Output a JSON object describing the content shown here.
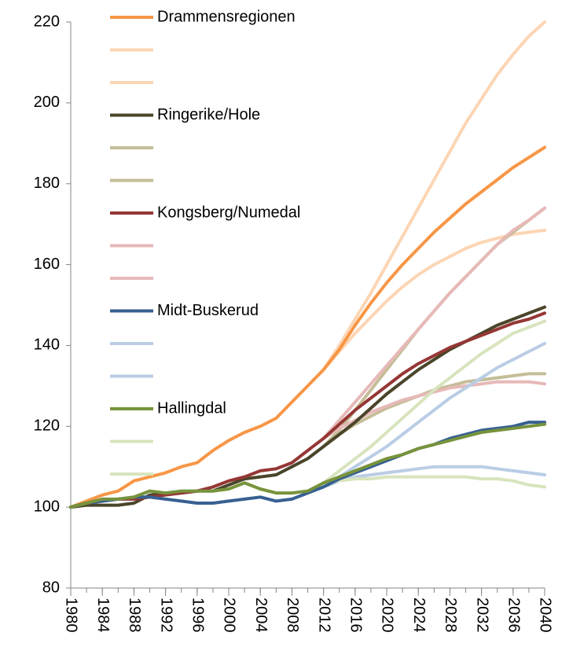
{
  "chart_data": {
    "type": "line",
    "x": [
      1980,
      1982,
      1984,
      1986,
      1988,
      1990,
      1992,
      1994,
      1996,
      1998,
      2000,
      2002,
      2004,
      2006,
      2008,
      2010,
      2012,
      2014,
      2016,
      2018,
      2020,
      2022,
      2024,
      2026,
      2028,
      2030,
      2032,
      2034,
      2036,
      2038,
      2040
    ],
    "xlim": [
      1980,
      2040
    ],
    "xticks": [
      1980,
      1984,
      1988,
      1992,
      1996,
      2000,
      2004,
      2008,
      2012,
      2016,
      2020,
      2024,
      2028,
      2032,
      2036,
      2040
    ],
    "ylim": [
      80,
      220
    ],
    "yticks": [
      80,
      100,
      120,
      140,
      160,
      180,
      200,
      220
    ],
    "grid": false,
    "legend": "upper left",
    "series": [
      {
        "name": "Drammensregionen",
        "color": "#f79646",
        "values": [
          100,
          101.5,
          103,
          104,
          106.5,
          107.5,
          108.5,
          110,
          111,
          114,
          116.5,
          118.5,
          120,
          122,
          126,
          130,
          134,
          139,
          145,
          150.5,
          155.5,
          160,
          164,
          168,
          171.5,
          175,
          178,
          181,
          184,
          186.5,
          189
        ]
      },
      {
        "name": null,
        "color": "#fcd5b4",
        "values": [
          null,
          null,
          null,
          null,
          null,
          null,
          null,
          null,
          null,
          null,
          null,
          null,
          null,
          null,
          null,
          null,
          134,
          140,
          146.5,
          153,
          160,
          167,
          174,
          181,
          188,
          195,
          201,
          207,
          212,
          216.5,
          220
        ]
      },
      {
        "name": null,
        "color": "#fcd5b4",
        "values": [
          null,
          null,
          null,
          null,
          null,
          null,
          null,
          null,
          null,
          null,
          null,
          null,
          null,
          null,
          null,
          null,
          134,
          138.5,
          143,
          147,
          151,
          154.5,
          157.5,
          160,
          162,
          164,
          165.5,
          166.5,
          167.5,
          168,
          168.5
        ]
      },
      {
        "name": "Ringerike/Hole",
        "color": "#4a452a",
        "values": [
          100,
          100.5,
          100.5,
          100.5,
          101,
          103,
          103.5,
          103.5,
          104,
          104,
          105.5,
          107,
          107.5,
          108,
          110,
          112,
          115,
          118,
          121,
          124.5,
          128,
          131,
          134,
          136.5,
          139,
          141,
          143,
          145,
          146.5,
          148,
          149.5
        ]
      },
      {
        "name": null,
        "color": "#c4bd97",
        "values": [
          null,
          null,
          null,
          null,
          null,
          null,
          null,
          null,
          null,
          null,
          null,
          null,
          null,
          null,
          null,
          null,
          115,
          119,
          124,
          129,
          134,
          139,
          144,
          148.5,
          153,
          157,
          161,
          165,
          168,
          171,
          174
        ]
      },
      {
        "name": null,
        "color": "#c4bd97",
        "values": [
          null,
          null,
          null,
          null,
          null,
          null,
          null,
          null,
          null,
          null,
          null,
          null,
          null,
          null,
          null,
          null,
          115,
          118,
          120.5,
          122.5,
          124.5,
          126,
          127.5,
          129,
          130,
          131,
          131.5,
          132,
          132.5,
          133,
          133
        ]
      },
      {
        "name": "Kongsberg/Numedal",
        "color": "#953735",
        "values": [
          100,
          101,
          101.5,
          102,
          102,
          102.5,
          103,
          103.5,
          104,
          105,
          106.5,
          107.5,
          109,
          109.5,
          111,
          114,
          117,
          120.5,
          124,
          127,
          130,
          133,
          135.5,
          137.5,
          139.5,
          141,
          142.5,
          144,
          145.5,
          146.5,
          148
        ]
      },
      {
        "name": null,
        "color": "#e6b9b8",
        "values": [
          null,
          null,
          null,
          null,
          null,
          null,
          null,
          null,
          null,
          null,
          null,
          null,
          null,
          null,
          null,
          null,
          117,
          121.5,
          126,
          130.5,
          135,
          139.5,
          144,
          148.5,
          153,
          157,
          161,
          165,
          168.5,
          171,
          174
        ]
      },
      {
        "name": null,
        "color": "#e6b9b8",
        "values": [
          null,
          null,
          null,
          null,
          null,
          null,
          null,
          null,
          null,
          null,
          null,
          null,
          null,
          null,
          null,
          null,
          117,
          119.5,
          121.5,
          123.5,
          125,
          126.5,
          127.5,
          128.5,
          129.5,
          130,
          130.5,
          131,
          131,
          131,
          130.5
        ]
      },
      {
        "name": "Midt-Buskerud",
        "color": "#376092",
        "values": [
          100,
          101,
          101.5,
          102,
          102.5,
          102.5,
          102,
          101.5,
          101,
          101,
          101.5,
          102,
          102.5,
          101.5,
          102,
          103.5,
          105,
          107,
          108.5,
          110,
          111.5,
          113,
          114.5,
          115.5,
          117,
          118,
          119,
          119.5,
          120,
          121,
          121
        ]
      },
      {
        "name": null,
        "color": "#b9cde5",
        "values": [
          null,
          null,
          null,
          null,
          null,
          null,
          null,
          null,
          null,
          null,
          null,
          null,
          null,
          null,
          null,
          null,
          105,
          107.5,
          110,
          112.5,
          115,
          118,
          121,
          124,
          127,
          129.5,
          132,
          134.5,
          136.5,
          138.5,
          140.5
        ]
      },
      {
        "name": null,
        "color": "#b9cde5",
        "values": [
          null,
          null,
          null,
          null,
          null,
          null,
          null,
          null,
          null,
          null,
          null,
          null,
          null,
          null,
          null,
          null,
          105,
          106.5,
          107.5,
          108,
          108.5,
          109,
          109.5,
          110,
          110,
          110,
          110,
          109.5,
          109,
          108.5,
          108
        ]
      },
      {
        "name": "Hallingdal",
        "color": "#77933c",
        "values": [
          100,
          101,
          102,
          102,
          102.5,
          104,
          103.5,
          104,
          104,
          104,
          104.5,
          106,
          104.5,
          103.5,
          103.5,
          104,
          106,
          107.5,
          109,
          110.5,
          112,
          113,
          114.5,
          115.5,
          116.5,
          117.5,
          118.5,
          119,
          119.5,
          120,
          120.5
        ]
      },
      {
        "name": null,
        "color": "#d7e4bd",
        "values": [
          null,
          null,
          null,
          null,
          null,
          null,
          null,
          null,
          null,
          null,
          null,
          null,
          null,
          null,
          null,
          null,
          106,
          109,
          112,
          115,
          118.5,
          122,
          125.5,
          129,
          132,
          135,
          138,
          140.5,
          143,
          144.5,
          146
        ]
      },
      {
        "name": null,
        "color": "#d7e4bd",
        "values": [
          null,
          null,
          null,
          null,
          null,
          null,
          null,
          null,
          null,
          null,
          null,
          null,
          null,
          null,
          null,
          null,
          106,
          106.5,
          107,
          107,
          107.5,
          107.5,
          107.5,
          107.5,
          107.5,
          107.5,
          107,
          107,
          106.5,
          105.5,
          105
        ]
      }
    ]
  }
}
